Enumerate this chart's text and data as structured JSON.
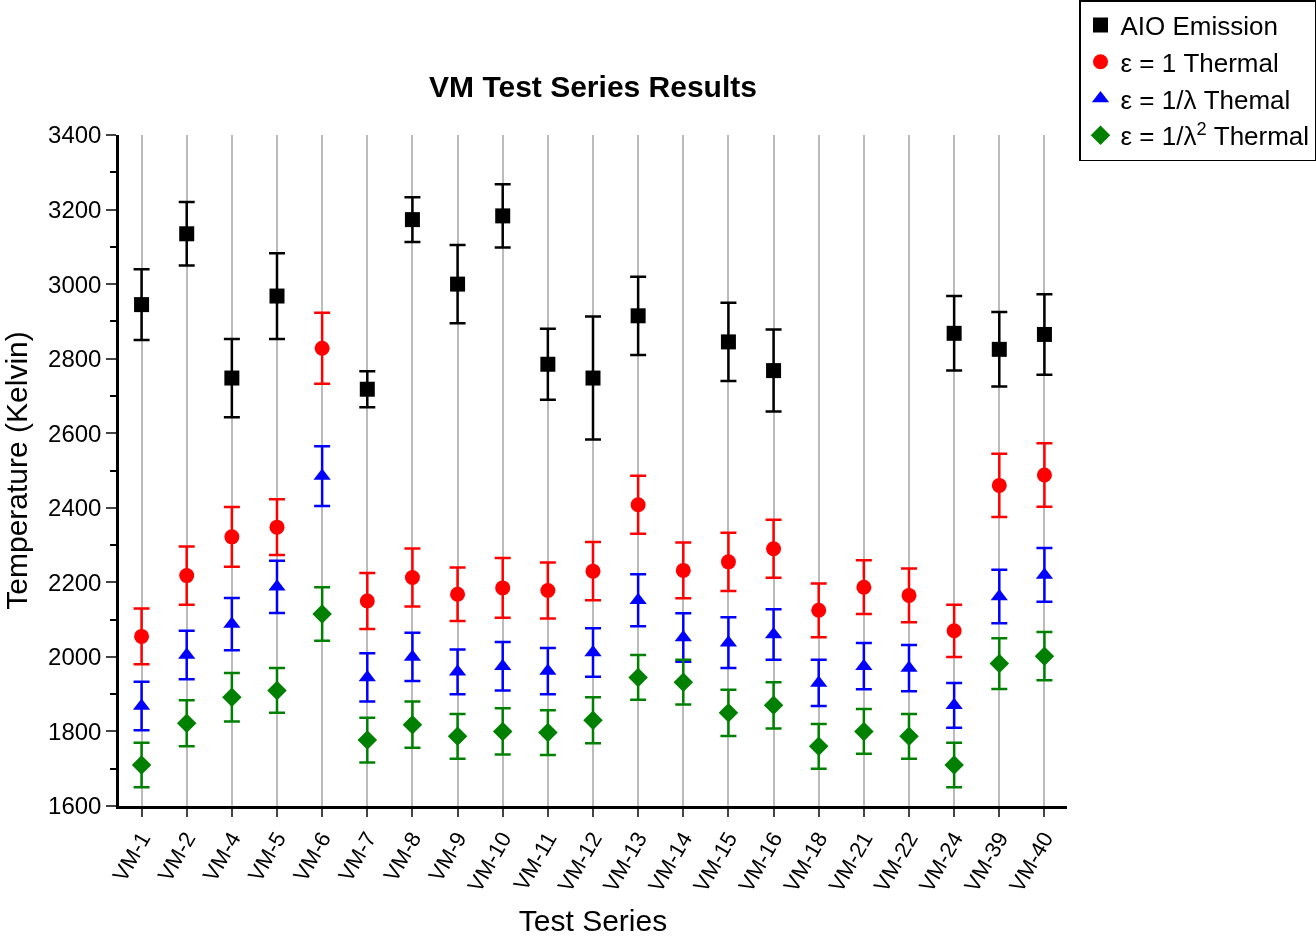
{
  "chart_data": {
    "type": "scatter",
    "title": "VM Test Series Results",
    "xlabel": "Test Series",
    "ylabel": "Temperature (Kelvin)",
    "categories": [
      "VM-1",
      "VM-2",
      "VM-4",
      "VM-5",
      "VM-6",
      "VM-7",
      "VM-8",
      "VM-9",
      "VM-10",
      "VM-11",
      "VM-12",
      "VM-13",
      "VM-14",
      "VM-15",
      "VM-16",
      "VM-18",
      "VM-21",
      "VM-22",
      "VM-24",
      "VM-39",
      "VM-40"
    ],
    "ylim": [
      1600,
      3400
    ],
    "yticks": [
      1600,
      1800,
      2000,
      2200,
      2400,
      2600,
      2800,
      3000,
      3200,
      3400
    ],
    "grid": "x",
    "legend": "top right",
    "series": [
      {
        "name": "AIO Emission",
        "color": "#000000",
        "marker": "square",
        "values": [
          2945,
          3135,
          2748,
          2968,
          null,
          2718,
          3173,
          3000,
          3183,
          2785,
          2748,
          2915,
          null,
          2845,
          2768,
          null,
          null,
          null,
          2868,
          2825,
          2865
        ],
        "errors": [
          95,
          85,
          105,
          115,
          null,
          48,
          60,
          105,
          85,
          95,
          165,
          105,
          null,
          105,
          110,
          null,
          null,
          null,
          100,
          100,
          108
        ]
      },
      {
        "name": "ε = 1 Thermal",
        "color": "#ff0000",
        "marker": "circle",
        "values": [
          2055,
          2218,
          2322,
          2348,
          2828,
          2150,
          2213,
          2168,
          2185,
          2178,
          2230,
          2408,
          2232,
          2255,
          2290,
          2125,
          2187,
          2165,
          2070,
          2460,
          2488
        ],
        "errors": [
          75,
          78,
          80,
          75,
          95,
          75,
          78,
          72,
          80,
          75,
          78,
          78,
          75,
          78,
          78,
          72,
          72,
          72,
          70,
          85,
          85
        ]
      },
      {
        "name": "ε = 1/λ Themal",
        "color": "#0000ff",
        "marker": "triangle",
        "values": [
          1868,
          2005,
          2088,
          2188,
          2485,
          1945,
          2000,
          1960,
          1975,
          1962,
          2012,
          2152,
          2052,
          2038,
          2060,
          1930,
          1975,
          1970,
          1870,
          2162,
          2220
        ],
        "errors": [
          65,
          65,
          70,
          70,
          80,
          65,
          65,
          60,
          65,
          62,
          65,
          70,
          65,
          68,
          68,
          62,
          62,
          62,
          60,
          72,
          72
        ]
      },
      {
        "name": "ε = 1/λ$^{2}$ Thermal",
        "color": "#008000",
        "marker": "diamond",
        "values": [
          1710,
          1822,
          1892,
          1910,
          2115,
          1777,
          1818,
          1787,
          1800,
          1797,
          1830,
          1945,
          1932,
          1850,
          1870,
          1760,
          1800,
          1787,
          1710,
          1982,
          2002
        ],
        "errors": [
          60,
          62,
          65,
          60,
          72,
          60,
          62,
          60,
          62,
          60,
          62,
          60,
          60,
          62,
          62,
          60,
          60,
          60,
          60,
          68,
          65
        ]
      }
    ]
  }
}
